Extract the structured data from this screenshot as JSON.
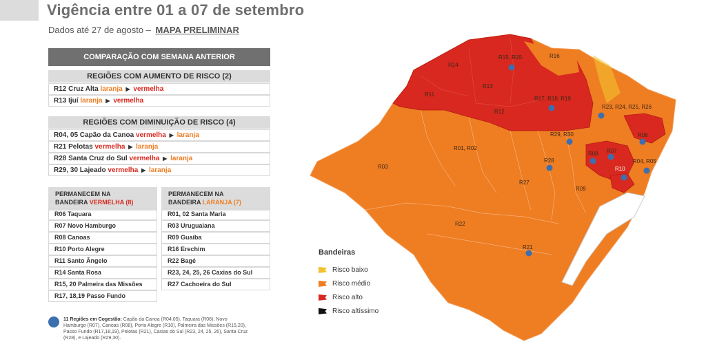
{
  "header": {
    "title": "Vigência entre 01 a 07 de setembro",
    "subtitle": "Dados até 27 de agosto –",
    "subtitle_link": "MAPA PRELIMINAR"
  },
  "comparacao": {
    "title": "COMPARAÇÃO COM SEMANA ANTERIOR",
    "aumento": {
      "title": "REGIÕES COM AUMENTO DE RISCO (2)",
      "rows": [
        {
          "region": "R12 Cruz Alta",
          "from": "laranja",
          "to": "vermelha"
        },
        {
          "region": "R13 Ijuí",
          "from": "laranja",
          "to": "vermelha"
        }
      ]
    },
    "diminuicao": {
      "title": "REGIÕES COM DIMINUIÇÃO DE RISCO (4)",
      "rows": [
        {
          "region": "R04, 05 Capão da Canoa",
          "from": "vermelha",
          "to": "laranja"
        },
        {
          "region": "R21 Pelotas",
          "from": "vermelha",
          "to": "laranja"
        },
        {
          "region": "R28 Santa Cruz do Sul",
          "from": "vermelha",
          "to": "laranja"
        },
        {
          "region": "R29, 30 Lajeado",
          "from": "vermelha",
          "to": "laranja"
        }
      ]
    }
  },
  "permanecem_vermelha": {
    "line1": "PERMANECEM NA",
    "line2": "BANDEIRA",
    "flag": "VERMELHA (8)",
    "items": [
      "R06 Taquara",
      "R07 Novo Hamburgo",
      "R08 Canoas",
      "R10 Porto Alegre",
      "R11 Santo Ângelo",
      "R14 Santa Rosa",
      "R15, 20 Palmeira das Missões",
      "R17, 18,19 Passo Fundo"
    ]
  },
  "permanecem_laranja": {
    "line1": "PERMANECEM NA",
    "line2": "BANDEIRA",
    "flag": "LARANJA (7)",
    "items": [
      "R01, 02 Santa Maria",
      "R03 Uruguaiana",
      "R09 Guaíba",
      "R16 Erechim",
      "R22 Bagé",
      "R23, 24, 25, 26 Caxias do Sul",
      "R27 Cachoeira do Sul"
    ]
  },
  "note": {
    "bold": "11 Regiões em Cogestão:",
    "text": "Capão da Canoa (R04,05), Taquara (R06), Novo Hamburgo (R07), Canoas (R08), Porto Alegre (R10), Palmeira das Missões (R15,20), Passo Fundo (R17,18,19), Pelotas (R21), Caxias do Sul (R23, 24, 25, 26), Santa Cruz (R28), e Lajeado (R29,30)."
  },
  "legend": {
    "title": "Bandeiras",
    "items": [
      {
        "label": "Risco baixo",
        "color": "#f2c12e"
      },
      {
        "label": "Risco médio",
        "color": "#ef7d22"
      },
      {
        "label": "Risco alto",
        "color": "#d8281f"
      },
      {
        "label": "Risco altíssimo",
        "color": "#111111"
      }
    ]
  },
  "map_labels": {
    "r14": "R14",
    "r15_20": "R15, R20",
    "r16": "R16",
    "r11": "R11",
    "r13": "R13",
    "r17_19": "R17, R18, R19",
    "r12": "R12",
    "r23_26": "R23, R24, R25, R26",
    "r06": "R06",
    "r29_30": "R29, R30",
    "r01_02": "R01, R02",
    "r03": "R03",
    "r08": "R08",
    "r07": "R07",
    "r28": "R28",
    "r04_05": "R04, R05",
    "r10": "R10",
    "r27": "R27",
    "r09": "R09",
    "r22": "R22",
    "r21": "R21"
  },
  "colors": {
    "red": "#d8281f",
    "orange": "#ef7d22",
    "cogestao_icon": "#3c6fb0"
  }
}
